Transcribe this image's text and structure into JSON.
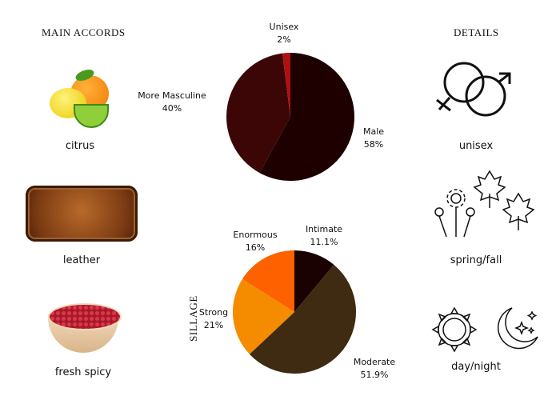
{
  "accords": {
    "title": "MAIN ACCORDS",
    "items": [
      {
        "label": "citrus",
        "icon": "citrus-fruit-image"
      },
      {
        "label": "leather",
        "icon": "leather-swatch-image"
      },
      {
        "label": "fresh spicy",
        "icon": "pink-pepper-bowl-image"
      }
    ]
  },
  "details": {
    "title": "DETAILS",
    "items": [
      {
        "label": "unisex",
        "icon": "gender-symbols-icon"
      },
      {
        "label": "spring/fall",
        "icon": "flowers-leaves-icon"
      },
      {
        "label": "day/night",
        "icon": "sun-moon-icon"
      }
    ]
  },
  "chart_data": [
    {
      "type": "pie",
      "title": "",
      "categories": [
        "Male",
        "More Masculine",
        "Unisex"
      ],
      "values": [
        58,
        40,
        2
      ],
      "labels": [
        "58%",
        "40%",
        "2%"
      ],
      "colors": [
        "#1e0000",
        "#3c0606",
        "#b01010"
      ]
    },
    {
      "type": "pie",
      "title": "SILLAGE",
      "categories": [
        "Intimate",
        "Moderate",
        "Strong",
        "Enormous"
      ],
      "values": [
        11.1,
        51.9,
        21,
        16
      ],
      "labels": [
        "11.1%",
        "51.9%",
        "21%",
        "16%"
      ],
      "colors": [
        "#1a0202",
        "#3f2a12",
        "#f58c00",
        "#fd6100"
      ]
    }
  ]
}
